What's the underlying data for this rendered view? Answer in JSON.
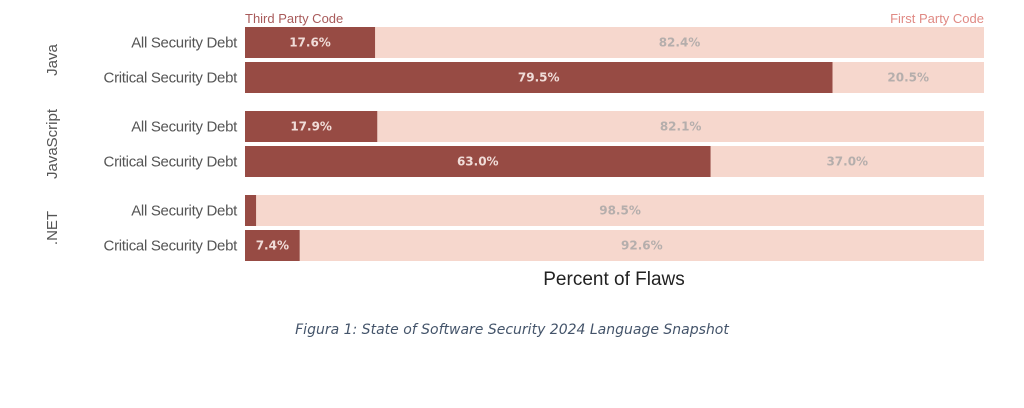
{
  "chart_data": {
    "type": "bar",
    "orientation": "horizontal",
    "stacked": true,
    "title": "",
    "xlabel": "Percent of Flaws",
    "ylabel": "",
    "xlim": [
      0,
      100
    ],
    "legend": {
      "placement": "top",
      "entries": [
        {
          "name": "Third Party Code",
          "color": "#974b44"
        },
        {
          "name": "First Party Code",
          "color": "#f6d7cd"
        }
      ]
    },
    "groups": [
      {
        "name": "Java",
        "rows": [
          {
            "category": "All Security Debt",
            "third_party": 17.6,
            "first_party": 82.4,
            "third_label": "17.6%",
            "first_label": "82.4%"
          },
          {
            "category": "Critical Security Debt",
            "third_party": 79.5,
            "first_party": 20.5,
            "third_label": "79.5%",
            "first_label": "20.5%"
          }
        ]
      },
      {
        "name": "JavaScript",
        "rows": [
          {
            "category": "All Security Debt",
            "third_party": 17.9,
            "first_party": 82.1,
            "third_label": "17.9%",
            "first_label": "82.1%"
          },
          {
            "category": "Critical Security Debt",
            "third_party": 63.0,
            "first_party": 37.0,
            "third_label": "63.0%",
            "first_label": "37.0%"
          }
        ]
      },
      {
        "name": ".NET",
        "rows": [
          {
            "category": "All Security Debt",
            "third_party": 1.5,
            "first_party": 98.5,
            "third_label": "",
            "first_label": "98.5%"
          },
          {
            "category": "Critical Security Debt",
            "third_party": 7.4,
            "first_party": 92.6,
            "third_label": "7.4%",
            "first_label": "92.6%"
          }
        ]
      }
    ]
  },
  "caption": "Figura 1: State of Software Security 2024 Language Snapshot"
}
